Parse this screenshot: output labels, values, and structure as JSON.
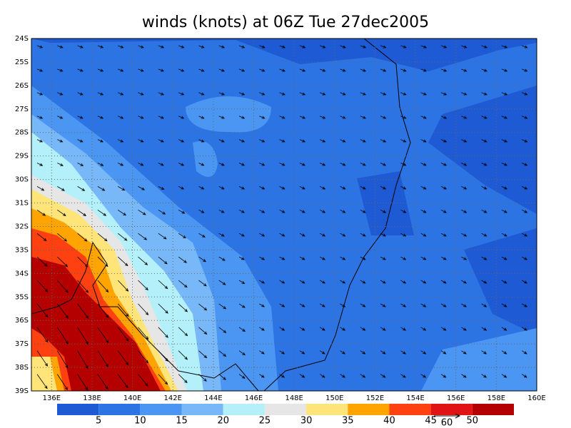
{
  "title": "winds (knots) at 06Z Tue 27dec2005",
  "lat_labels": [
    "24S",
    "25S",
    "26S",
    "27S",
    "28S",
    "29S",
    "30S",
    "31S",
    "32S",
    "33S",
    "34S",
    "35S",
    "36S",
    "37S",
    "38S",
    "39S"
  ],
  "lon_labels": [
    "136E",
    "138E",
    "140E",
    "142E",
    "144E",
    "146E",
    "148E",
    "150E",
    "152E",
    "154E",
    "156E",
    "158E",
    "160E"
  ],
  "colorbar": {
    "labels": [
      5,
      10,
      15,
      20,
      25,
      30,
      35,
      40,
      45,
      50
    ],
    "colors": [
      "#1e5ad4",
      "#2c74e4",
      "#4a96f2",
      "#78b8f8",
      "#b4f0fa",
      "#e6e6e6",
      "#ffe47a",
      "#ffa400",
      "#ff4010",
      "#e01414",
      "#b40000"
    ]
  },
  "vector_reference": "60"
}
